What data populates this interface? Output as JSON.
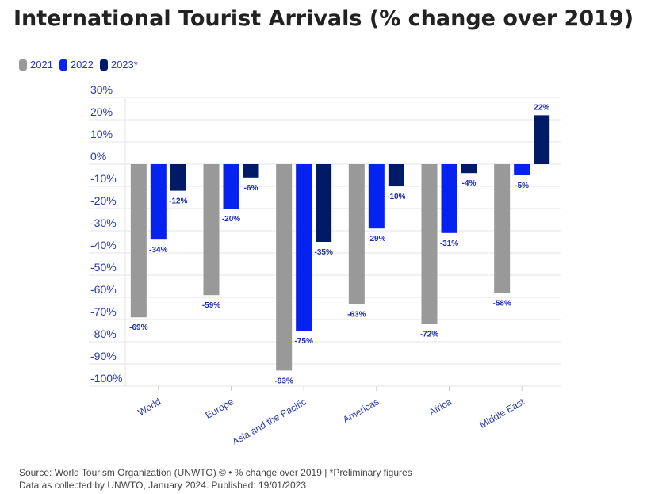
{
  "chart_data": {
    "type": "bar",
    "title": "International Tourist Arrivals (% change over 2019)",
    "categories": [
      "World",
      "Europe",
      "Asia and the Pacific",
      "Americas",
      "Africa",
      "Middle East"
    ],
    "series": [
      {
        "name": "2021",
        "color": "#999999",
        "values": [
          -69,
          -59,
          -93,
          -63,
          -72,
          -58
        ]
      },
      {
        "name": "2022",
        "color": "#0522ee",
        "values": [
          -34,
          -20,
          -75,
          -29,
          -31,
          -5
        ]
      },
      {
        "name": "2023*",
        "color": "#001a66",
        "values": [
          -12,
          -6,
          -35,
          -10,
          -4,
          22
        ]
      }
    ],
    "ylim": [
      -100,
      30
    ],
    "yticks": [
      "30%",
      "20%",
      "10%",
      "0%",
      "-10%",
      "-20%",
      "-30%",
      "-40%",
      "-50%",
      "-60%",
      "-70%",
      "-80%",
      "-90%",
      "-100%"
    ],
    "legend": "top-left",
    "grid": true
  },
  "footer": {
    "source_link": "Source: World Tourism Organization (UNWTO) ©",
    "note": " • % change over 2019 | *Preliminary figures",
    "line2": "Data as collected by UNWTO, January 2024. Published: 19/01/2023"
  }
}
